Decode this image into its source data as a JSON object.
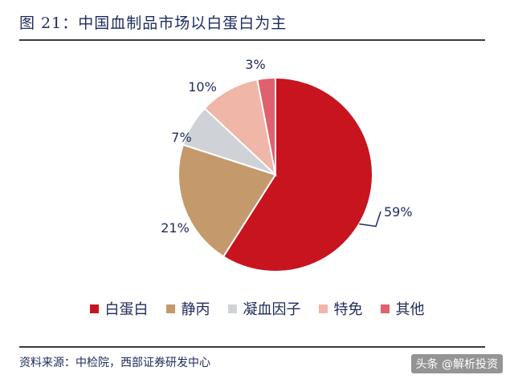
{
  "title": "图 21：中国血制品市场以白蛋白为主",
  "source": "资料来源：中检院，西部证券研发中心",
  "watermark": "头条 @解析投资",
  "chart_data": {
    "type": "pie",
    "title": "",
    "slices": [
      {
        "name": "白蛋白",
        "value": 59,
        "label": "59%",
        "color": "#c8141f"
      },
      {
        "name": "静丙",
        "value": 21,
        "label": "21%",
        "color": "#c49a6c"
      },
      {
        "name": "凝血因子",
        "value": 7,
        "label": "7%",
        "color": "#cfd3d8"
      },
      {
        "name": "特免",
        "value": 10,
        "label": "10%",
        "color": "#f0b6a8"
      },
      {
        "name": "其他",
        "value": 3,
        "label": "3%",
        "color": "#e0606e"
      }
    ],
    "legend_position": "bottom"
  }
}
